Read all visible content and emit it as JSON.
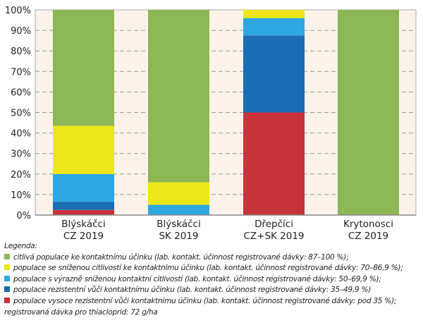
{
  "chart_data": {
    "type": "bar",
    "stacked": true,
    "categories": [
      [
        "Blýskáčci",
        "CZ 2019"
      ],
      [
        "Blýskáčci",
        "SK 2019"
      ],
      [
        "Dřepčíci",
        "CZ+SK 2019"
      ],
      [
        "Krytonosci",
        "CZ 2019"
      ]
    ],
    "ylim": [
      0,
      100
    ],
    "yticks": [
      "0%",
      "10%",
      "20%",
      "30%",
      "40%",
      "50%",
      "60%",
      "70%",
      "80%",
      "90%",
      "100%"
    ],
    "grid": true,
    "series": [
      {
        "key": "red",
        "color": "#c8323a",
        "values": [
          2.5,
          0,
          50,
          0
        ]
      },
      {
        "key": "darkblue",
        "color": "#1a6db2",
        "values": [
          4,
          0,
          37.5,
          0
        ]
      },
      {
        "key": "lightblue",
        "color": "#2ea7e0",
        "values": [
          13.5,
          5,
          8.5,
          0
        ]
      },
      {
        "key": "yellow",
        "color": "#ede619",
        "values": [
          23.5,
          11,
          4,
          0
        ]
      },
      {
        "key": "green",
        "color": "#8db654",
        "values": [
          56.5,
          84,
          0,
          100
        ]
      }
    ],
    "legend": {
      "title": "Legenda:",
      "items": [
        {
          "color": "#8db654",
          "text": "citlivá populace ke kontaktnímu účinku (lab. kontakt. účinnost registrované dávky: 87–100 %);"
        },
        {
          "color": "#ede619",
          "text": "populace se sníženou citlivostí ke kontaktnímu účinku (lab. kontakt. účinnost registrované dávky: 70–86,9 %);"
        },
        {
          "color": "#2ea7e0",
          "text": "populace s výrazně sníženou kontaktní citlivostí (lab. kontakt. účinnost registrované dávky: 50–69,9 %);"
        },
        {
          "color": "#1a6db2",
          "text": "populace rezistentní vůči kontaktnímu účinku (lab. kontakt. účinnost registrované dávky: 35–49,9 %)"
        },
        {
          "color": "#c8323a",
          "text": "populace vysoce rezistentní vůči kontaktnímu účinku (lab. kontakt. účinnost registrované dávky: pod 35 %);"
        }
      ],
      "note": "registrovaná dávka pro thiacloprid: 72 g/ha"
    }
  }
}
